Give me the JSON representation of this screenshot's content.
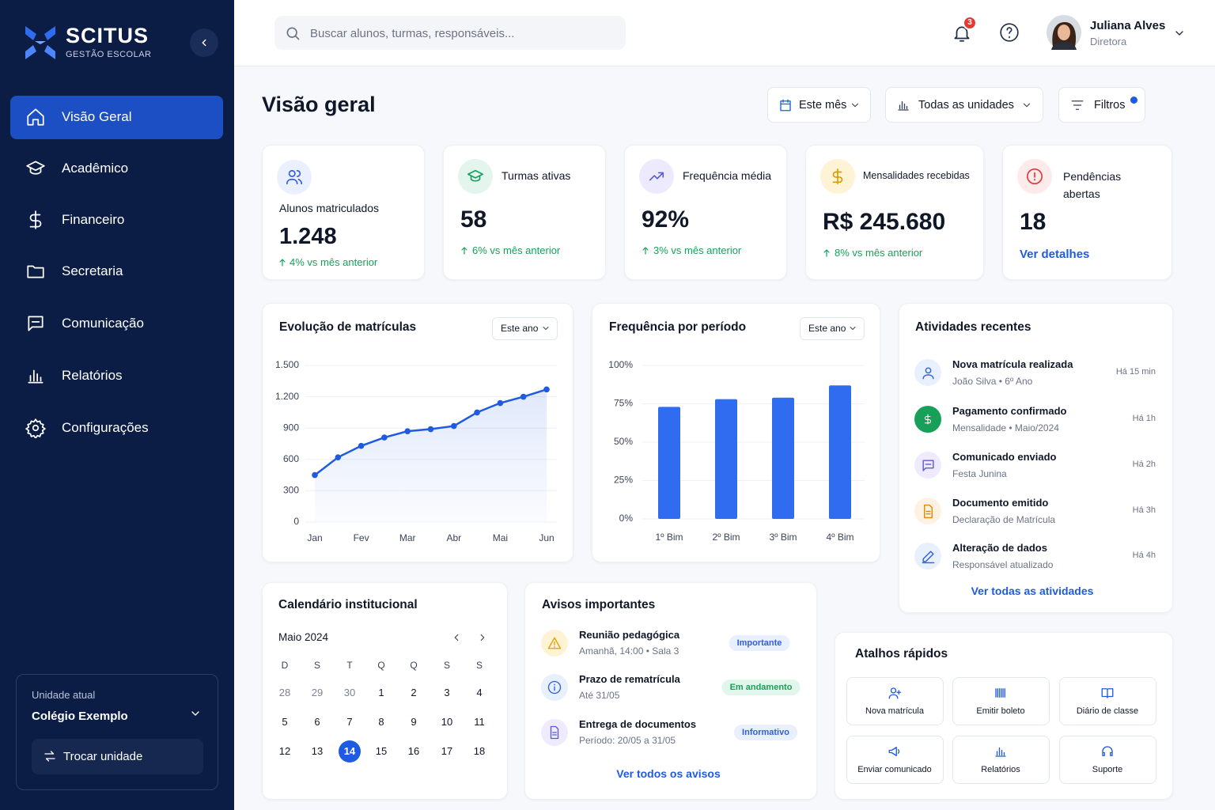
{
  "sidebar": {
    "brand": "SCITUS",
    "tagline": "GESTÃO ESCOLAR",
    "menu": [
      "Visão Geral",
      "Acadêmico",
      "Financeiro",
      "Secretaria",
      "Comunicação",
      "Relatórios",
      "Configurações"
    ],
    "active": 0,
    "unit": {
      "label": "Unidade atual",
      "name": "Colégio Exemplo",
      "button": "Trocar unidade"
    }
  },
  "header": {
    "search_placeholder": "Buscar alunos, turmas, responsáveis...",
    "notifications": 3,
    "user": {
      "name": "Juliana Alves",
      "role": "Diretora"
    }
  },
  "title": "Visão geral",
  "filters": [
    "Este mês",
    "Todas as unidades",
    "Filtros"
  ],
  "kpis": [
    {
      "label": "Alunos matriculados",
      "value": "1.248",
      "change": "4% vs mês anterior"
    },
    {
      "label": "Turmas ativas",
      "value": "58",
      "change": "6% vs mês anterior"
    },
    {
      "label": "Frequência média",
      "value": "92%",
      "change": "3% vs mês anterior"
    },
    {
      "label": "Mensalidades recebidas",
      "value": "R$ 245.680",
      "change": "8% vs mês anterior"
    },
    {
      "label": "Pendências abertas",
      "value": "18",
      "link": "Ver detalhes"
    }
  ],
  "chart_data": [
    {
      "type": "line",
      "title": "Evolução de matrículas",
      "period": "Este ano",
      "categories": [
        "Jan",
        null,
        "Fev",
        null,
        "Mar",
        null,
        "Abr",
        null,
        "Mai",
        null,
        "Jun"
      ],
      "values": [
        450,
        620,
        730,
        810,
        870,
        890,
        920,
        1050,
        1140,
        1200,
        1270
      ],
      "color": "#1f5be0",
      "ylim": [
        0,
        1500
      ],
      "yticks": [
        0,
        300,
        600,
        900,
        {
          "value": 1200,
          "label": "1.200"
        },
        {
          "value": 1500,
          "label": "1.500"
        }
      ],
      "grid": true
    },
    {
      "type": "bar",
      "title": "Frequência por período",
      "period": "Este ano",
      "categories": [
        "1º Bim",
        "2º Bim",
        "3º Bim",
        "4º Bim"
      ],
      "values": [
        73,
        78,
        79,
        87
      ],
      "color": "#2f6cf0",
      "ylim": [
        0,
        100
      ],
      "yticks": [
        {
          "value": 0,
          "label": "0%"
        },
        {
          "value": 25,
          "label": "25%"
        },
        {
          "value": 50,
          "label": "50%"
        },
        {
          "value": 75,
          "label": "75%"
        },
        {
          "value": 100,
          "label": "100%"
        }
      ],
      "grid": true
    }
  ],
  "activities": {
    "title": "Atividades recentes",
    "items": [
      {
        "title": "Nova matrícula realizada",
        "subtitle": "João Silva • 6º Ano",
        "time": "Há 15 min"
      },
      {
        "title": "Pagamento confirmado",
        "subtitle": "Mensalidade • Maio/2024",
        "time": "Há 1h"
      },
      {
        "title": "Comunicado enviado",
        "subtitle": "Festa Junina",
        "time": "Há 2h"
      },
      {
        "title": "Documento emitido",
        "subtitle": "Declaração de Matrícula",
        "time": "Há 3h"
      },
      {
        "title": "Alteração de dados",
        "subtitle": "Responsável atualizado",
        "time": "Há 4h"
      }
    ],
    "link": "Ver todas as atividades"
  },
  "calendar": {
    "title": "Calendário institucional",
    "month": "Maio 2024",
    "weekdays": [
      "D",
      "S",
      "T",
      "Q",
      "Q",
      "S",
      "S"
    ],
    "weeks": [
      [
        28,
        29,
        30,
        1,
        2,
        3,
        4
      ],
      [
        5,
        6,
        7,
        8,
        9,
        10,
        11
      ],
      [
        12,
        13,
        14,
        15,
        16,
        17,
        18
      ]
    ],
    "today": 14
  },
  "notices": {
    "title": "Avisos importantes",
    "items": [
      {
        "title": "Reunião pedagógica",
        "subtitle": "Amanhã, 14:00 • Sala 3",
        "tag": "Importante"
      },
      {
        "title": "Prazo de rematrícula",
        "subtitle": "Até 31/05",
        "tag": "Em andamento"
      },
      {
        "title": "Entrega de documentos",
        "subtitle": "Período: 20/05 a 31/05",
        "tag": "Informativo"
      }
    ],
    "link": "Ver todos os avisos"
  },
  "shortcuts": {
    "title": "Atalhos rápidos",
    "items": [
      "Nova matrícula",
      "Emitir boleto",
      "Diário de classe",
      "Enviar comunicado",
      "Relatórios",
      "Suporte"
    ]
  }
}
